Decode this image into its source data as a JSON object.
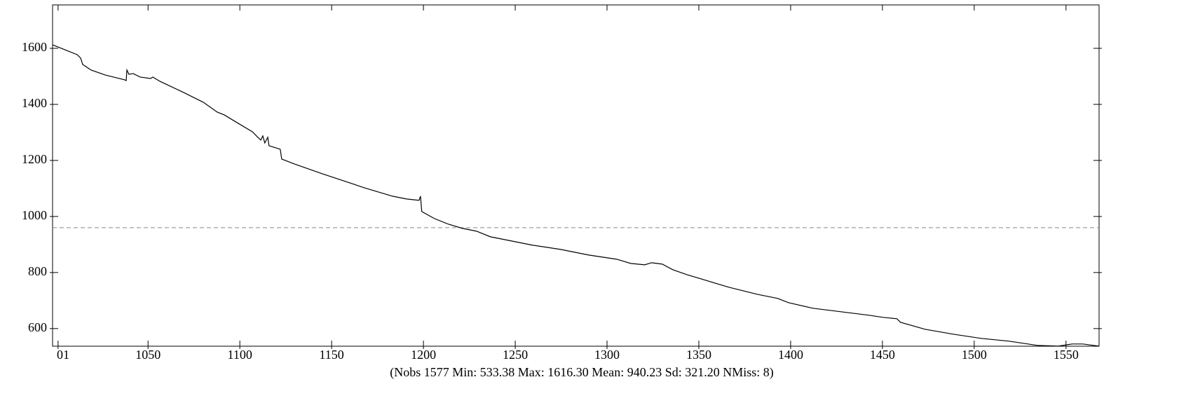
{
  "chart_data": {
    "type": "line",
    "xlabel": "(Nobs 1577 Min: 533.38 Max: 1616.30 Mean: 940.23 Sd: 321.20 NMiss: 8)",
    "xlim": [
      998,
      1568
    ],
    "ylim": [
      537,
      1755
    ],
    "xticks": [
      {
        "value": 1001,
        "label": "01"
      },
      1050,
      1100,
      1150,
      1200,
      1250,
      1300,
      1350,
      1400,
      1450,
      1500,
      1550
    ],
    "yticks": [
      600,
      800,
      1000,
      1200,
      1400,
      1600
    ],
    "reference_line": {
      "value": 960,
      "color": "#888888"
    },
    "series": [
      {
        "color": "#000000",
        "x": [
          998.0,
          1003.7,
          1011.4,
          1013.3,
          1014.4,
          1019.0,
          1026.6,
          1037.3,
          1038.1,
          1038.5,
          1039.6,
          1041.9,
          1045.7,
          1051.4,
          1052.6,
          1056.4,
          1068.6,
          1080.1,
          1087.7,
          1091.5,
          1099.1,
          1106.8,
          1109.8,
          1111.4,
          1112.5,
          1113.6,
          1115.2,
          1115.9,
          1122.0,
          1122.8,
          1129.7,
          1144.9,
          1167.8,
          1183.1,
          1190.7,
          1197.6,
          1198.4,
          1199.1,
          1206.0,
          1213.6,
          1221.3,
          1228.9,
          1236.5,
          1244.2,
          1259.5,
          1274.7,
          1290.0,
          1305.2,
          1312.9,
          1320.5,
          1324.3,
          1330.1,
          1335.8,
          1343.4,
          1351.1,
          1366.3,
          1381.6,
          1393.0,
          1398.8,
          1412.1,
          1427.4,
          1442.7,
          1450.3,
          1457.9,
          1459.8,
          1473.2,
          1488.5,
          1503.7,
          1519.0,
          1534.3,
          1545.7,
          1553.4,
          1559.1,
          1567.9
        ],
        "values": [
          1612.5,
          1597.5,
          1577.5,
          1565,
          1542.5,
          1522.5,
          1505,
          1487.5,
          1485,
          1522.5,
          1507.5,
          1510,
          1497.5,
          1492.5,
          1497.5,
          1482.5,
          1445,
          1407.5,
          1372.5,
          1362.5,
          1332.5,
          1302.5,
          1282.5,
          1272.5,
          1287.5,
          1262.5,
          1282.5,
          1252.5,
          1240,
          1205,
          1187.5,
          1152.5,
          1102.5,
          1072.5,
          1062.5,
          1057.5,
          1072.5,
          1017.5,
          992.5,
          972.5,
          957.5,
          947.5,
          927.5,
          917.5,
          897.5,
          882.5,
          862.5,
          847.5,
          832.5,
          827.5,
          835,
          830,
          810,
          792.5,
          777.5,
          747.5,
          722.5,
          707.5,
          692.5,
          672.5,
          660,
          647.5,
          640,
          635,
          622.5,
          597.5,
          580,
          565,
          555,
          540,
          537.5,
          545,
          545,
          537.5
        ]
      }
    ]
  }
}
